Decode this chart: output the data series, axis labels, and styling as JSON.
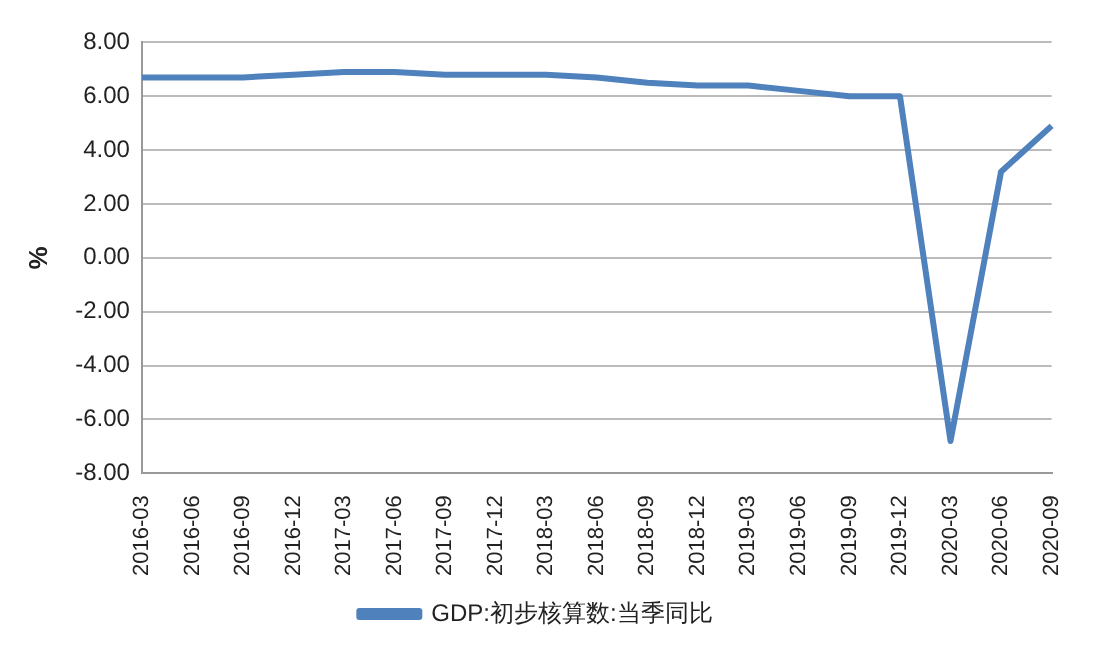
{
  "chart_data": {
    "type": "line",
    "ylabel": "%",
    "categories": [
      "2016-03",
      "2016-06",
      "2016-09",
      "2016-12",
      "2017-03",
      "2017-06",
      "2017-09",
      "2017-12",
      "2018-03",
      "2018-06",
      "2018-09",
      "2018-12",
      "2019-03",
      "2019-06",
      "2019-09",
      "2019-12",
      "2020-03",
      "2020-06",
      "2020-09"
    ],
    "series": [
      {
        "name": "GDP:初步核算数:当季同比",
        "color": "#4f81bd",
        "values": [
          6.7,
          6.7,
          6.7,
          6.8,
          6.9,
          6.9,
          6.8,
          6.8,
          6.8,
          6.7,
          6.5,
          6.4,
          6.4,
          6.2,
          6.0,
          6.0,
          -6.8,
          3.2,
          4.9
        ]
      }
    ],
    "ylim": [
      -8,
      8
    ],
    "yticks": [
      {
        "value": -8,
        "label": "-8.00"
      },
      {
        "value": -6,
        "label": "-6.00"
      },
      {
        "value": -4,
        "label": "-4.00"
      },
      {
        "value": -2,
        "label": "-2.00"
      },
      {
        "value": 0,
        "label": "0.00"
      },
      {
        "value": 2,
        "label": "2.00"
      },
      {
        "value": 4,
        "label": "4.00"
      },
      {
        "value": 6,
        "label": "6.00"
      },
      {
        "value": 8,
        "label": "8.00"
      }
    ],
    "grid": "y",
    "legend": "bottom",
    "marker": "none",
    "line_style": "solid"
  }
}
